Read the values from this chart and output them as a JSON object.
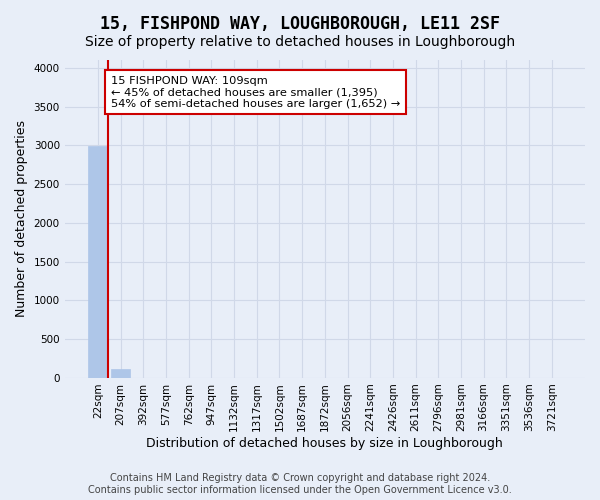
{
  "title": "15, FISHPOND WAY, LOUGHBOROUGH, LE11 2SF",
  "subtitle": "Size of property relative to detached houses in Loughborough",
  "xlabel": "Distribution of detached houses by size in Loughborough",
  "ylabel": "Number of detached properties",
  "footer_line1": "Contains HM Land Registry data © Crown copyright and database right 2024.",
  "footer_line2": "Contains public sector information licensed under the Open Government Licence v3.0.",
  "bin_labels": [
    "22sqm",
    "207sqm",
    "392sqm",
    "577sqm",
    "762sqm",
    "947sqm",
    "1132sqm",
    "1317sqm",
    "1502sqm",
    "1687sqm",
    "1872sqm",
    "2056sqm",
    "2241sqm",
    "2426sqm",
    "2611sqm",
    "2796sqm",
    "2981sqm",
    "3166sqm",
    "3351sqm",
    "3536sqm",
    "3721sqm"
  ],
  "bar_heights": [
    2990,
    110,
    0,
    0,
    0,
    0,
    0,
    0,
    0,
    0,
    0,
    0,
    0,
    0,
    0,
    0,
    0,
    0,
    0,
    0,
    0
  ],
  "bar_color": "#aec6e8",
  "bar_edge_color": "#aec6e8",
  "grid_color": "#d0d8e8",
  "background_color": "#e8eef8",
  "property_line_x": 0.43,
  "annotation_text": "15 FISHPOND WAY: 109sqm\n← 45% of detached houses are smaller (1,395)\n54% of semi-detached houses are larger (1,652) →",
  "annotation_box_color": "#ffffff",
  "annotation_box_edge_color": "#cc0000",
  "annotation_line_color": "#cc0000",
  "ylim": [
    0,
    4100
  ],
  "yticks": [
    0,
    500,
    1000,
    1500,
    2000,
    2500,
    3000,
    3500,
    4000
  ],
  "title_fontsize": 12,
  "subtitle_fontsize": 10,
  "axis_fontsize": 9,
  "tick_fontsize": 7.5,
  "footer_fontsize": 7
}
